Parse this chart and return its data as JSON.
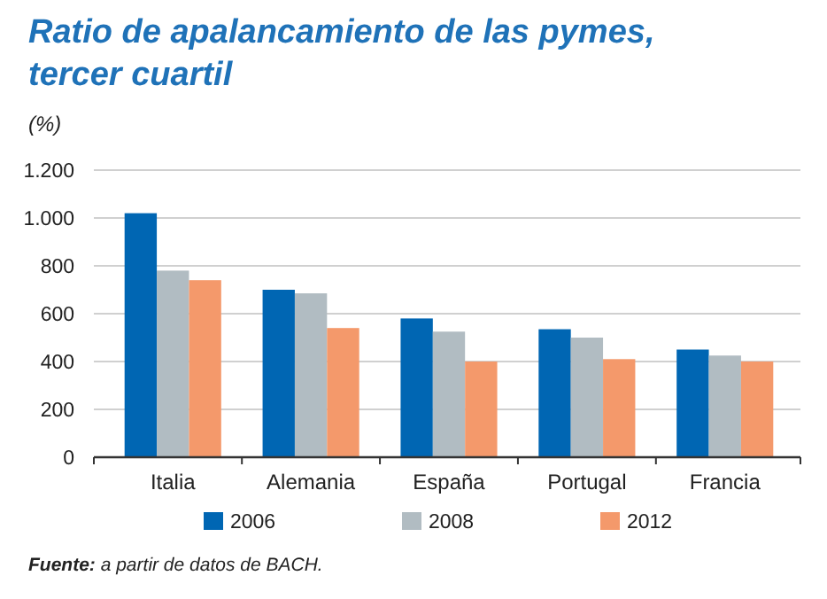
{
  "chart_data": {
    "type": "bar",
    "title": "Ratio de apalancamiento de las pymes, tercer cuartil",
    "ylabel": "(%)",
    "categories": [
      "Italia",
      "Alemania",
      "España",
      "Portugal",
      "Francia"
    ],
    "series": [
      {
        "name": "2006",
        "color": "#0066b3",
        "values": [
          1020,
          700,
          580,
          535,
          450
        ]
      },
      {
        "name": "2008",
        "color": "#b1bcc2",
        "values": [
          780,
          685,
          525,
          500,
          425
        ]
      },
      {
        "name": "2012",
        "color": "#f4996b",
        "values": [
          740,
          540,
          400,
          410,
          400
        ]
      }
    ],
    "ylim": [
      0,
      1200
    ],
    "yticks": [
      0,
      {
        "value": 200,
        "label": "200"
      },
      {
        "value": 400,
        "label": "400"
      },
      {
        "value": 600,
        "label": "600"
      },
      {
        "value": 800,
        "label": "800"
      },
      {
        "value": 1000,
        "label": "1.000"
      },
      {
        "value": 1200,
        "label": "1.200"
      }
    ],
    "grid": "y",
    "legend": "bottom",
    "annotations": [
      "Fuente: a partir de datos de BACH."
    ]
  }
}
